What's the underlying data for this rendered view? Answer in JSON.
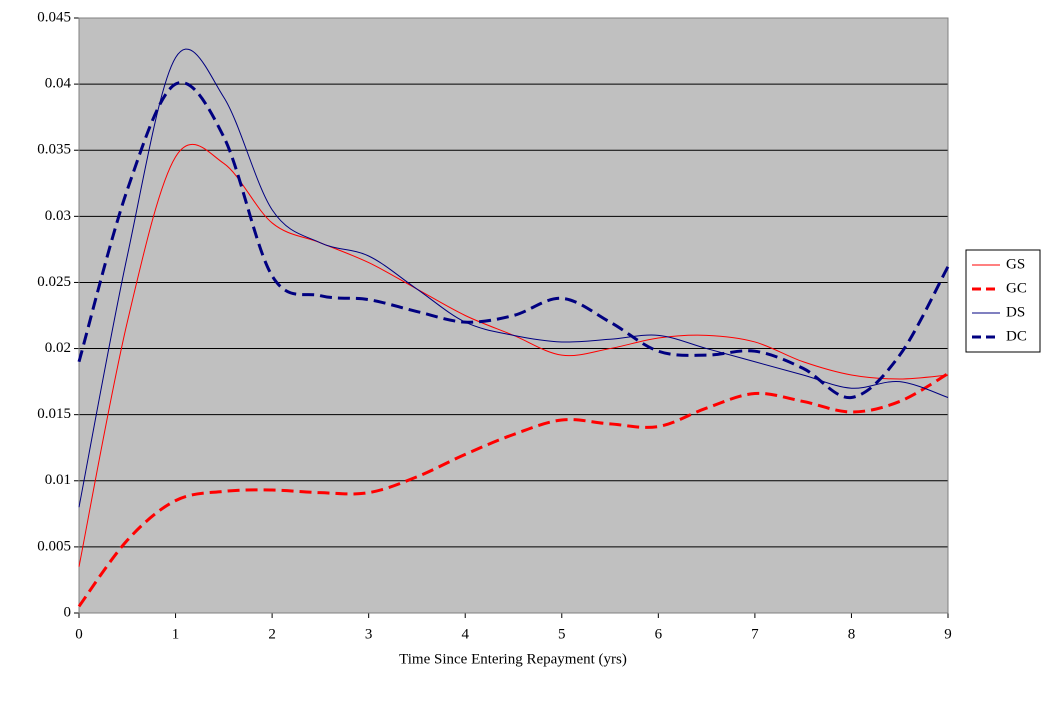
{
  "chart_data": {
    "type": "line",
    "x_label": "Time Since Entering Repayment (yrs)",
    "x": [
      0,
      0.5,
      1,
      1.5,
      2,
      2.5,
      3,
      3.5,
      4,
      4.5,
      5,
      5.5,
      6,
      6.5,
      7,
      7.5,
      8,
      8.5,
      9
    ],
    "series": [
      {
        "name": "GS",
        "color": "#ff0000",
        "dashed": false,
        "values": [
          0.0035,
          0.022,
          0.0345,
          0.034,
          0.0295,
          0.028,
          0.0265,
          0.0245,
          0.0225,
          0.021,
          0.0195,
          0.02,
          0.0208,
          0.021,
          0.0205,
          0.019,
          0.018,
          0.0177,
          0.018
        ]
      },
      {
        "name": "GC",
        "color": "#ff0000",
        "dashed": true,
        "values": [
          0.0005,
          0.0055,
          0.0085,
          0.0092,
          0.0093,
          0.0091,
          0.0091,
          0.0103,
          0.012,
          0.0135,
          0.0146,
          0.0143,
          0.0141,
          0.0155,
          0.0166,
          0.016,
          0.0152,
          0.016,
          0.0181
        ]
      },
      {
        "name": "DS",
        "color": "#000080",
        "dashed": false,
        "values": [
          0.008,
          0.027,
          0.042,
          0.039,
          0.0305,
          0.028,
          0.027,
          0.0245,
          0.022,
          0.021,
          0.0205,
          0.0207,
          0.021,
          0.02,
          0.019,
          0.018,
          0.017,
          0.0175,
          0.0163
        ]
      },
      {
        "name": "DC",
        "color": "#000080",
        "dashed": true,
        "values": [
          0.019,
          0.032,
          0.04,
          0.036,
          0.0255,
          0.024,
          0.0237,
          0.0228,
          0.022,
          0.0225,
          0.0238,
          0.022,
          0.0198,
          0.0195,
          0.0198,
          0.0185,
          0.0163,
          0.0195,
          0.0262
        ]
      }
    ],
    "xlim": [
      0,
      9
    ],
    "xticks": [
      0,
      1,
      2,
      3,
      4,
      5,
      6,
      7,
      8,
      9
    ],
    "ylim": [
      0,
      0.045
    ],
    "yticks": [
      0,
      0.005,
      0.01,
      0.015,
      0.02,
      0.025,
      0.03,
      0.035,
      0.04,
      0.045
    ],
    "grid": true,
    "plot_background": "#c0c0c0",
    "legend": "right"
  }
}
